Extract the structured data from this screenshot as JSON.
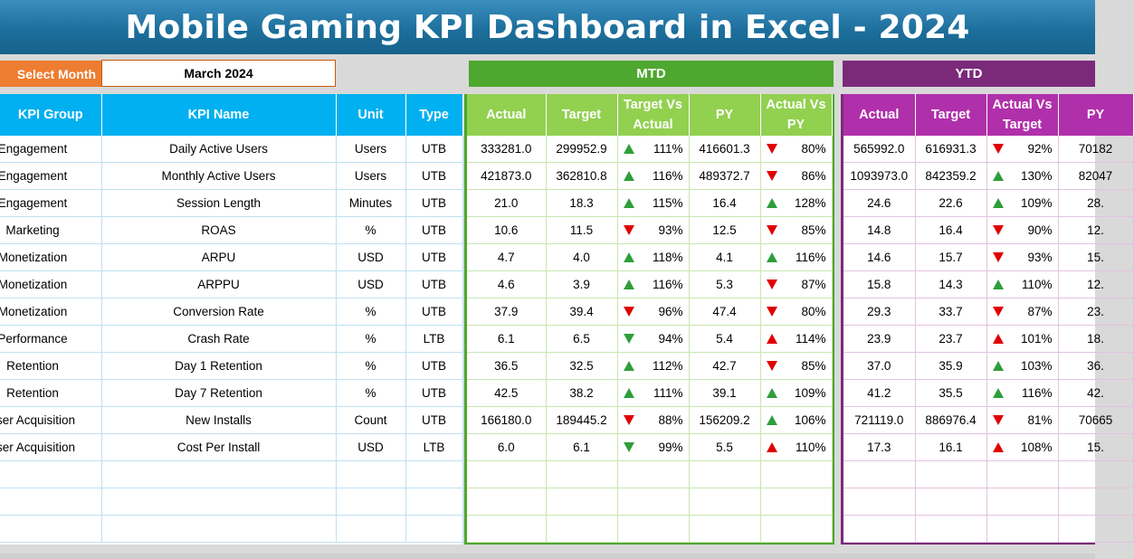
{
  "title": "Mobile Gaming KPI Dashboard in Excel - 2024",
  "select_month": {
    "label": "Select Month",
    "value": "March 2024"
  },
  "banners": {
    "mtd": "MTD",
    "ytd": "YTD"
  },
  "left_headers": [
    "KPI Group",
    "KPI Name",
    "Unit",
    "Type"
  ],
  "mtd_headers": [
    "Actual",
    "Target",
    "Target Vs Actual",
    "PY",
    "Actual Vs PY"
  ],
  "ytd_headers": [
    "Actual",
    "Target",
    "Actual Vs Target",
    "PY"
  ],
  "rows": [
    {
      "group": "Engagement",
      "name": "Daily Active Users",
      "unit": "Users",
      "type": "UTB",
      "mtd": {
        "actual": "333281.0",
        "target": "299952.9",
        "tva": "111%",
        "tva_ind": "up-green",
        "py": "416601.3",
        "avp": "80%",
        "avp_ind": "down-red"
      },
      "ytd": {
        "actual": "565992.0",
        "target": "616931.3",
        "avt": "92%",
        "avt_ind": "down-red",
        "py": "70182"
      }
    },
    {
      "group": "Engagement",
      "name": "Monthly Active Users",
      "unit": "Users",
      "type": "UTB",
      "mtd": {
        "actual": "421873.0",
        "target": "362810.8",
        "tva": "116%",
        "tva_ind": "up-green",
        "py": "489372.7",
        "avp": "86%",
        "avp_ind": "down-red"
      },
      "ytd": {
        "actual": "1093973.0",
        "target": "842359.2",
        "avt": "130%",
        "avt_ind": "up-green",
        "py": "82047"
      }
    },
    {
      "group": "Engagement",
      "name": "Session Length",
      "unit": "Minutes",
      "type": "UTB",
      "mtd": {
        "actual": "21.0",
        "target": "18.3",
        "tva": "115%",
        "tva_ind": "up-green",
        "py": "16.4",
        "avp": "128%",
        "avp_ind": "up-green"
      },
      "ytd": {
        "actual": "24.6",
        "target": "22.6",
        "avt": "109%",
        "avt_ind": "up-green",
        "py": "28."
      }
    },
    {
      "group": "Marketing",
      "name": "ROAS",
      "unit": "%",
      "type": "UTB",
      "mtd": {
        "actual": "10.6",
        "target": "11.5",
        "tva": "93%",
        "tva_ind": "down-red",
        "py": "12.5",
        "avp": "85%",
        "avp_ind": "down-red"
      },
      "ytd": {
        "actual": "14.8",
        "target": "16.4",
        "avt": "90%",
        "avt_ind": "down-red",
        "py": "12."
      }
    },
    {
      "group": "Monetization",
      "name": "ARPU",
      "unit": "USD",
      "type": "UTB",
      "mtd": {
        "actual": "4.7",
        "target": "4.0",
        "tva": "118%",
        "tva_ind": "up-green",
        "py": "4.1",
        "avp": "116%",
        "avp_ind": "up-green"
      },
      "ytd": {
        "actual": "14.6",
        "target": "15.7",
        "avt": "93%",
        "avt_ind": "down-red",
        "py": "15."
      }
    },
    {
      "group": "Monetization",
      "name": "ARPPU",
      "unit": "USD",
      "type": "UTB",
      "mtd": {
        "actual": "4.6",
        "target": "3.9",
        "tva": "116%",
        "tva_ind": "up-green",
        "py": "5.3",
        "avp": "87%",
        "avp_ind": "down-red"
      },
      "ytd": {
        "actual": "15.8",
        "target": "14.3",
        "avt": "110%",
        "avt_ind": "up-green",
        "py": "12."
      }
    },
    {
      "group": "Monetization",
      "name": "Conversion Rate",
      "unit": "%",
      "type": "UTB",
      "mtd": {
        "actual": "37.9",
        "target": "39.4",
        "tva": "96%",
        "tva_ind": "down-red",
        "py": "47.4",
        "avp": "80%",
        "avp_ind": "down-red"
      },
      "ytd": {
        "actual": "29.3",
        "target": "33.7",
        "avt": "87%",
        "avt_ind": "down-red",
        "py": "23."
      }
    },
    {
      "group": "Performance",
      "name": "Crash Rate",
      "unit": "%",
      "type": "LTB",
      "mtd": {
        "actual": "6.1",
        "target": "6.5",
        "tva": "94%",
        "tva_ind": "down-green",
        "py": "5.4",
        "avp": "114%",
        "avp_ind": "up-red"
      },
      "ytd": {
        "actual": "23.9",
        "target": "23.7",
        "avt": "101%",
        "avt_ind": "up-red",
        "py": "18."
      }
    },
    {
      "group": "Retention",
      "name": "Day 1 Retention",
      "unit": "%",
      "type": "UTB",
      "mtd": {
        "actual": "36.5",
        "target": "32.5",
        "tva": "112%",
        "tva_ind": "up-green",
        "py": "42.7",
        "avp": "85%",
        "avp_ind": "down-red"
      },
      "ytd": {
        "actual": "37.0",
        "target": "35.9",
        "avt": "103%",
        "avt_ind": "up-green",
        "py": "36."
      }
    },
    {
      "group": "Retention",
      "name": "Day 7 Retention",
      "unit": "%",
      "type": "UTB",
      "mtd": {
        "actual": "42.5",
        "target": "38.2",
        "tva": "111%",
        "tva_ind": "up-green",
        "py": "39.1",
        "avp": "109%",
        "avp_ind": "up-green"
      },
      "ytd": {
        "actual": "41.2",
        "target": "35.5",
        "avt": "116%",
        "avt_ind": "up-green",
        "py": "42."
      }
    },
    {
      "group": "ser Acquisition",
      "name": "New Installs",
      "unit": "Count",
      "type": "UTB",
      "mtd": {
        "actual": "166180.0",
        "target": "189445.2",
        "tva": "88%",
        "tva_ind": "down-red",
        "py": "156209.2",
        "avp": "106%",
        "avp_ind": "up-green"
      },
      "ytd": {
        "actual": "721119.0",
        "target": "886976.4",
        "avt": "81%",
        "avt_ind": "down-red",
        "py": "70665"
      }
    },
    {
      "group": "ser Acquisition",
      "name": "Cost Per Install",
      "unit": "USD",
      "type": "LTB",
      "mtd": {
        "actual": "6.0",
        "target": "6.1",
        "tva": "99%",
        "tva_ind": "down-green",
        "py": "5.5",
        "avp": "110%",
        "avp_ind": "up-red"
      },
      "ytd": {
        "actual": "17.3",
        "target": "16.1",
        "avt": "108%",
        "avt_ind": "up-red",
        "py": "15."
      }
    }
  ],
  "empty_rows": 3,
  "colors": {
    "title_bar": "#1d6f9c",
    "select_label": "#ed7d31",
    "mtd_banner": "#4ea72e",
    "ytd_banner": "#7b2a7a",
    "left_header": "#00b0f0",
    "mtd_header": "#92d050",
    "ytd_header": "#b02faa",
    "up_indicator": "#2e9e3a",
    "down_indicator": "#e00000"
  }
}
